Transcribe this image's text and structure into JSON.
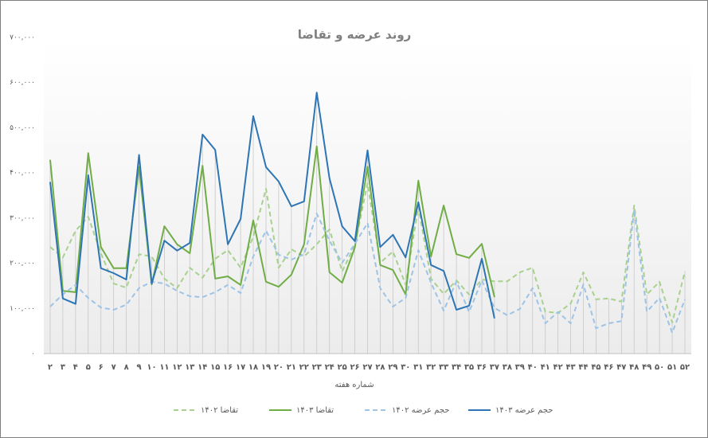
{
  "chart_data": {
    "type": "line",
    "title": "روند عرضه و تقاضا",
    "xlabel": "شماره هفته",
    "categories": [
      "۲",
      "۳",
      "۴",
      "۵",
      "۶",
      "۷",
      "۸",
      "۹",
      "۱۰",
      "۱۱",
      "۱۲",
      "۱۳",
      "۱۴",
      "۱۵",
      "۱۶",
      "۱۷",
      "۱۸",
      "۱۹",
      "۲۰",
      "۲۱",
      "۲۲",
      "۲۳",
      "۲۴",
      "۲۵",
      "۲۶",
      "۲۷",
      "۲۸",
      "۲۹",
      "۳۰",
      "۳۱",
      "۳۲",
      "۳۳",
      "۳۴",
      "۳۵",
      "۳۶",
      "۳۷",
      "۳۸",
      "۳۹",
      "۴۰",
      "۴۱",
      "۴۲",
      "۴۳",
      "۴۴",
      "۴۵",
      "۴۶",
      "۴۷",
      "۴۸",
      "۴۹",
      "۵۰",
      "۵۱",
      "۵۲"
    ],
    "series": [
      {
        "name": "تقاضا ۱۴۰۲",
        "color": "#a9d18e",
        "dash": true,
        "values": [
          236000,
          213000,
          272000,
          303000,
          222000,
          155000,
          146000,
          220000,
          215000,
          166000,
          145000,
          190000,
          168000,
          210000,
          229000,
          190000,
          259000,
          365000,
          190000,
          231000,
          215000,
          242000,
          275000,
          182000,
          240000,
          377000,
          201000,
          226000,
          153000,
          325000,
          166000,
          132000,
          162000,
          131000,
          164000,
          160000,
          160000,
          180000,
          190000,
          93000,
          90000,
          111000,
          180000,
          120000,
          122000,
          115000,
          328000,
          131000,
          159000,
          69000,
          182000
        ]
      },
      {
        "name": "تقاضا ۱۴۰۳",
        "color": "#70ad47",
        "dash": false,
        "values": [
          429000,
          139000,
          136000,
          444000,
          236000,
          189000,
          189000,
          413000,
          153000,
          282000,
          242000,
          222000,
          416000,
          166000,
          171000,
          152000,
          295000,
          159000,
          148000,
          175000,
          242000,
          459000,
          180000,
          157000,
          235000,
          414000,
          196000,
          185000,
          131000,
          383000,
          215000,
          328000,
          220000,
          212000,
          243000,
          125000,
          null,
          null,
          null,
          null,
          null,
          null,
          null,
          null,
          null,
          null,
          null,
          null,
          null,
          null,
          null
        ]
      },
      {
        "name": "حجم عرضه ۱۴۰۲",
        "color": "#9dc3e6",
        "dash": true,
        "values": [
          104000,
          131000,
          152000,
          123000,
          102000,
          97000,
          108000,
          145000,
          159000,
          155000,
          139000,
          127000,
          125000,
          136000,
          152000,
          134000,
          215000,
          272000,
          219000,
          208000,
          220000,
          310000,
          250000,
          201000,
          243000,
          289000,
          145000,
          104000,
          123000,
          229000,
          157000,
          95000,
          160000,
          92000,
          162000,
          101000,
          85000,
          99000,
          145000,
          67000,
          92000,
          67000,
          153000,
          56000,
          67000,
          72000,
          319000,
          93000,
          123000,
          46000,
          120000
        ]
      },
      {
        "name": "حجم عرضه ۱۴۰۳",
        "color": "#2e75b6",
        "dash": false,
        "values": [
          380000,
          122000,
          110000,
          395000,
          189000,
          178000,
          164000,
          440000,
          155000,
          250000,
          228000,
          245000,
          485000,
          451000,
          242000,
          298000,
          526000,
          413000,
          381000,
          326000,
          337000,
          578000,
          388000,
          282000,
          249000,
          450000,
          236000,
          263000,
          213000,
          335000,
          196000,
          183000,
          97000,
          106000,
          210000,
          78000,
          null,
          null,
          null,
          null,
          null,
          null,
          null,
          null,
          null,
          null,
          null,
          null,
          null,
          null,
          null
        ]
      }
    ],
    "ylim": [
      0,
      700000
    ],
    "yticks": [
      {
        "value": 0,
        "label": "۰"
      },
      {
        "value": 100000,
        "label": "۱۰۰,۰۰۰"
      },
      {
        "value": 200000,
        "label": "۲۰۰,۰۰۰"
      },
      {
        "value": 300000,
        "label": "۳۰۰,۰۰۰"
      },
      {
        "value": 400000,
        "label": "۴۰۰,۰۰۰"
      },
      {
        "value": 500000,
        "label": "۵۰۰,۰۰۰"
      },
      {
        "value": 600000,
        "label": "۶۰۰,۰۰۰"
      },
      {
        "value": 700000,
        "label": "۷۰۰,۰۰۰"
      }
    ],
    "legend": "bottom"
  }
}
